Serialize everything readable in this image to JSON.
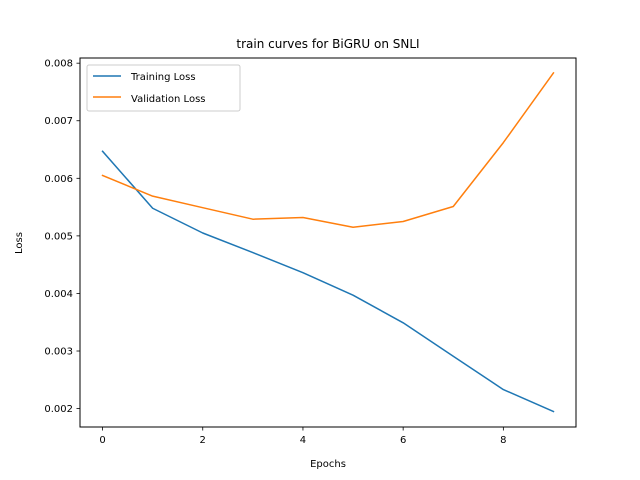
{
  "chart_data": {
    "type": "line",
    "title": "train curves for BiGRU on SNLI",
    "xlabel": "Epochs",
    "ylabel": "Loss",
    "xlim": [
      -0.45,
      9.45
    ],
    "ylim": [
      0.00168,
      0.00809
    ],
    "xticks": [
      0,
      2,
      4,
      6,
      8
    ],
    "xtick_labels": [
      "0",
      "2",
      "4",
      "6",
      "8"
    ],
    "yticks": [
      0.002,
      0.003,
      0.004,
      0.005,
      0.006,
      0.007,
      0.008
    ],
    "ytick_labels": [
      "0.002",
      "0.003",
      "0.004",
      "0.005",
      "0.006",
      "0.007",
      "0.008"
    ],
    "grid": false,
    "legend": "upper-left",
    "x": [
      0,
      1,
      2,
      3,
      4,
      5,
      6,
      7,
      8,
      9
    ],
    "series": [
      {
        "name": "Training Loss",
        "color": "#1f77b4",
        "values": [
          0.00647,
          0.00548,
          0.00505,
          0.00471,
          0.00436,
          0.00397,
          0.00349,
          0.00291,
          0.00233,
          0.00195
        ]
      },
      {
        "name": "Validation Loss",
        "color": "#ff7f0e",
        "values": [
          0.00605,
          0.00569,
          0.00549,
          0.00529,
          0.00532,
          0.00515,
          0.00525,
          0.00551,
          0.00662,
          0.00783
        ]
      }
    ]
  }
}
